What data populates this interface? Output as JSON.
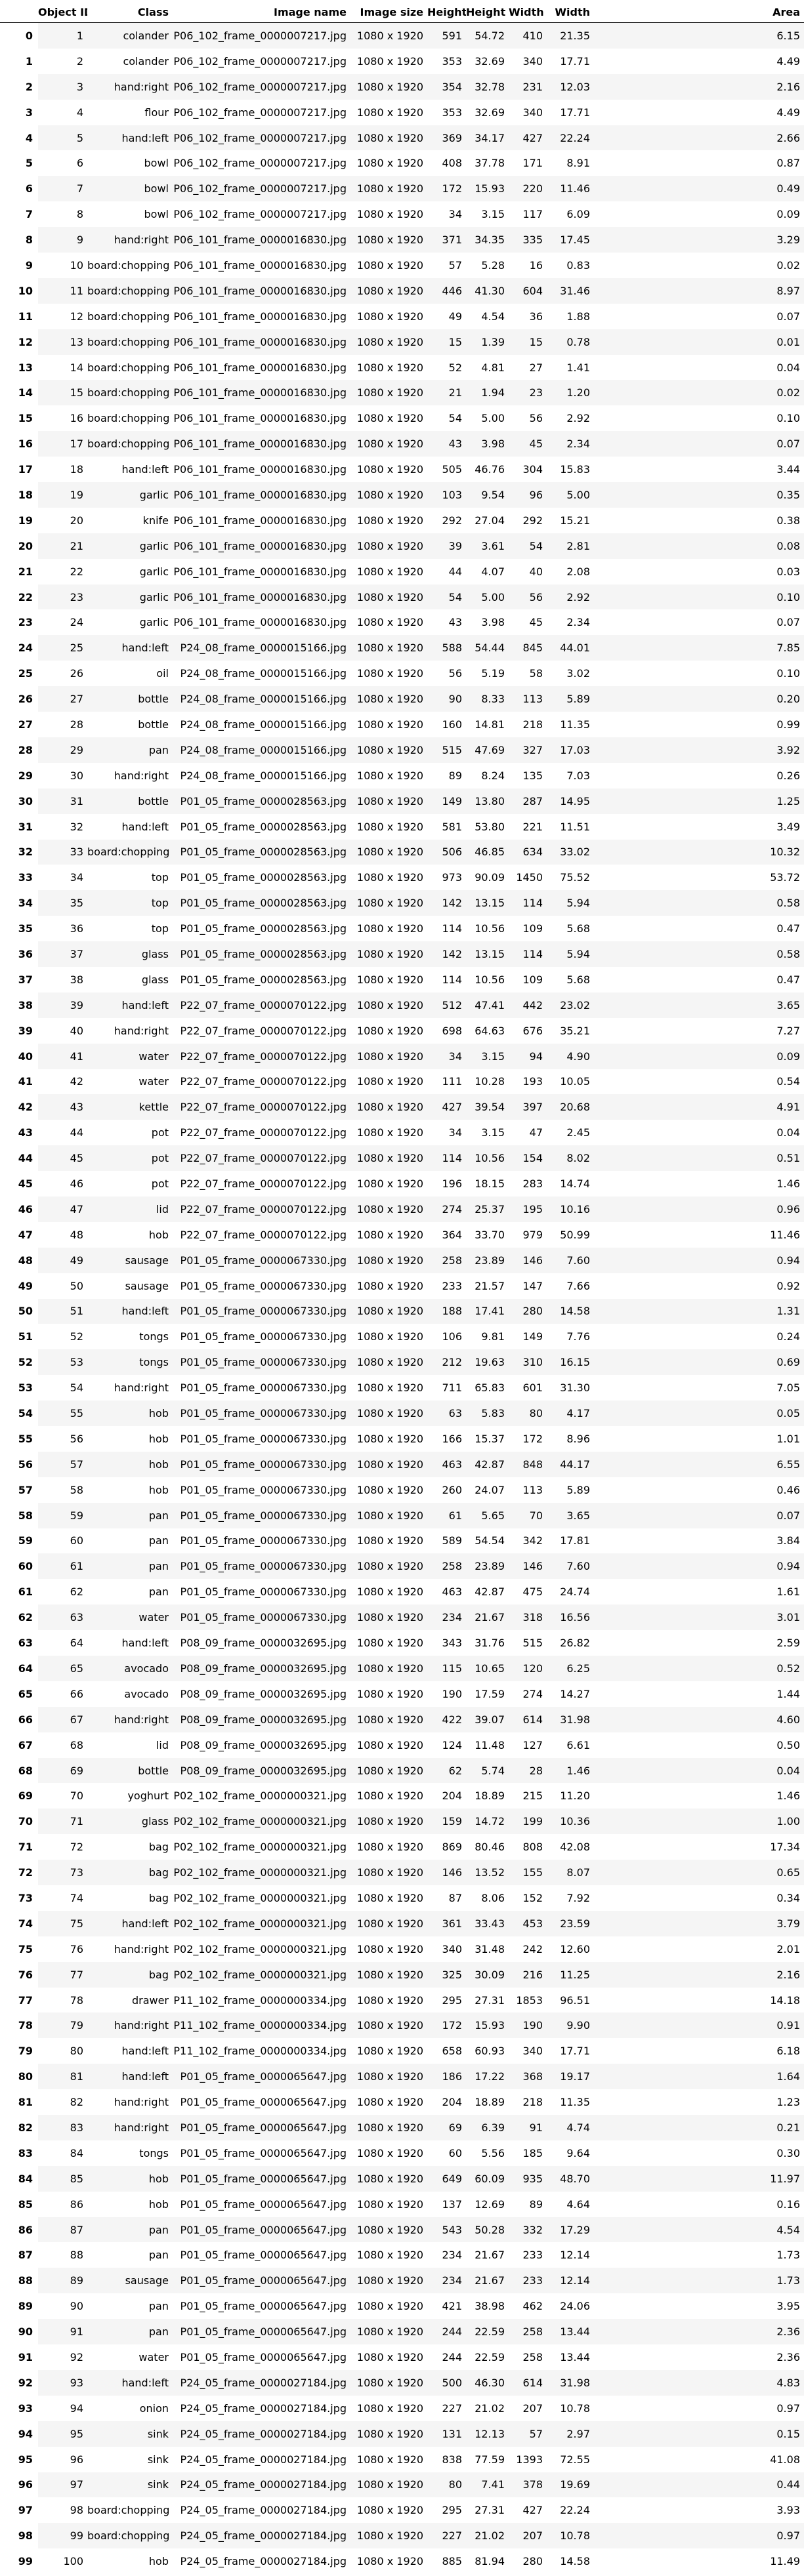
{
  "columns": [
    "",
    "Object ID",
    "Class",
    "Image name",
    "Image size",
    "Height",
    "Height",
    "Width",
    "Width",
    "Area"
  ],
  "rows": [
    [
      "0",
      "1",
      "colander",
      "P06_102_frame_0000007217.jpg",
      "1080 x 1920",
      "591",
      "54.72",
      "410",
      "21.35",
      "6.15"
    ],
    [
      "1",
      "2",
      "colander",
      "P06_102_frame_0000007217.jpg",
      "1080 x 1920",
      "353",
      "32.69",
      "340",
      "17.71",
      "4.49"
    ],
    [
      "2",
      "3",
      "hand:right",
      "P06_102_frame_0000007217.jpg",
      "1080 x 1920",
      "354",
      "32.78",
      "231",
      "12.03",
      "2.16"
    ],
    [
      "3",
      "4",
      "flour",
      "P06_102_frame_0000007217.jpg",
      "1080 x 1920",
      "353",
      "32.69",
      "340",
      "17.71",
      "4.49"
    ],
    [
      "4",
      "5",
      "hand:left",
      "P06_102_frame_0000007217.jpg",
      "1080 x 1920",
      "369",
      "34.17",
      "427",
      "22.24",
      "2.66"
    ],
    [
      "5",
      "6",
      "bowl",
      "P06_102_frame_0000007217.jpg",
      "1080 x 1920",
      "408",
      "37.78",
      "171",
      "8.91",
      "0.87"
    ],
    [
      "6",
      "7",
      "bowl",
      "P06_102_frame_0000007217.jpg",
      "1080 x 1920",
      "172",
      "15.93",
      "220",
      "11.46",
      "0.49"
    ],
    [
      "7",
      "8",
      "bowl",
      "P06_102_frame_0000007217.jpg",
      "1080 x 1920",
      "34",
      "3.15",
      "117",
      "6.09",
      "0.09"
    ],
    [
      "8",
      "9",
      "hand:right",
      "P06_101_frame_0000016830.jpg",
      "1080 x 1920",
      "371",
      "34.35",
      "335",
      "17.45",
      "3.29"
    ],
    [
      "9",
      "10",
      "board:chopping",
      "P06_101_frame_0000016830.jpg",
      "1080 x 1920",
      "57",
      "5.28",
      "16",
      "0.83",
      "0.02"
    ],
    [
      "10",
      "11",
      "board:chopping",
      "P06_101_frame_0000016830.jpg",
      "1080 x 1920",
      "446",
      "41.30",
      "604",
      "31.46",
      "8.97"
    ],
    [
      "11",
      "12",
      "board:chopping",
      "P06_101_frame_0000016830.jpg",
      "1080 x 1920",
      "49",
      "4.54",
      "36",
      "1.88",
      "0.07"
    ],
    [
      "12",
      "13",
      "board:chopping",
      "P06_101_frame_0000016830.jpg",
      "1080 x 1920",
      "15",
      "1.39",
      "15",
      "0.78",
      "0.01"
    ],
    [
      "13",
      "14",
      "board:chopping",
      "P06_101_frame_0000016830.jpg",
      "1080 x 1920",
      "52",
      "4.81",
      "27",
      "1.41",
      "0.04"
    ],
    [
      "14",
      "15",
      "board:chopping",
      "P06_101_frame_0000016830.jpg",
      "1080 x 1920",
      "21",
      "1.94",
      "23",
      "1.20",
      "0.02"
    ],
    [
      "15",
      "16",
      "board:chopping",
      "P06_101_frame_0000016830.jpg",
      "1080 x 1920",
      "54",
      "5.00",
      "56",
      "2.92",
      "0.10"
    ],
    [
      "16",
      "17",
      "board:chopping",
      "P06_101_frame_0000016830.jpg",
      "1080 x 1920",
      "43",
      "3.98",
      "45",
      "2.34",
      "0.07"
    ],
    [
      "17",
      "18",
      "hand:left",
      "P06_101_frame_0000016830.jpg",
      "1080 x 1920",
      "505",
      "46.76",
      "304",
      "15.83",
      "3.44"
    ],
    [
      "18",
      "19",
      "garlic",
      "P06_101_frame_0000016830.jpg",
      "1080 x 1920",
      "103",
      "9.54",
      "96",
      "5.00",
      "0.35"
    ],
    [
      "19",
      "20",
      "knife",
      "P06_101_frame_0000016830.jpg",
      "1080 x 1920",
      "292",
      "27.04",
      "292",
      "15.21",
      "0.38"
    ],
    [
      "20",
      "21",
      "garlic",
      "P06_101_frame_0000016830.jpg",
      "1080 x 1920",
      "39",
      "3.61",
      "54",
      "2.81",
      "0.08"
    ],
    [
      "21",
      "22",
      "garlic",
      "P06_101_frame_0000016830.jpg",
      "1080 x 1920",
      "44",
      "4.07",
      "40",
      "2.08",
      "0.03"
    ],
    [
      "22",
      "23",
      "garlic",
      "P06_101_frame_0000016830.jpg",
      "1080 x 1920",
      "54",
      "5.00",
      "56",
      "2.92",
      "0.10"
    ],
    [
      "23",
      "24",
      "garlic",
      "P06_101_frame_0000016830.jpg",
      "1080 x 1920",
      "43",
      "3.98",
      "45",
      "2.34",
      "0.07"
    ],
    [
      "24",
      "25",
      "hand:left",
      "P24_08_frame_0000015166.jpg",
      "1080 x 1920",
      "588",
      "54.44",
      "845",
      "44.01",
      "7.85"
    ],
    [
      "25",
      "26",
      "oil",
      "P24_08_frame_0000015166.jpg",
      "1080 x 1920",
      "56",
      "5.19",
      "58",
      "3.02",
      "0.10"
    ],
    [
      "26",
      "27",
      "bottle",
      "P24_08_frame_0000015166.jpg",
      "1080 x 1920",
      "90",
      "8.33",
      "113",
      "5.89",
      "0.20"
    ],
    [
      "27",
      "28",
      "bottle",
      "P24_08_frame_0000015166.jpg",
      "1080 x 1920",
      "160",
      "14.81",
      "218",
      "11.35",
      "0.99"
    ],
    [
      "28",
      "29",
      "pan",
      "P24_08_frame_0000015166.jpg",
      "1080 x 1920",
      "515",
      "47.69",
      "327",
      "17.03",
      "3.92"
    ],
    [
      "29",
      "30",
      "hand:right",
      "P24_08_frame_0000015166.jpg",
      "1080 x 1920",
      "89",
      "8.24",
      "135",
      "7.03",
      "0.26"
    ],
    [
      "30",
      "31",
      "bottle",
      "P01_05_frame_0000028563.jpg",
      "1080 x 1920",
      "149",
      "13.80",
      "287",
      "14.95",
      "1.25"
    ],
    [
      "31",
      "32",
      "hand:left",
      "P01_05_frame_0000028563.jpg",
      "1080 x 1920",
      "581",
      "53.80",
      "221",
      "11.51",
      "3.49"
    ],
    [
      "32",
      "33",
      "board:chopping",
      "P01_05_frame_0000028563.jpg",
      "1080 x 1920",
      "506",
      "46.85",
      "634",
      "33.02",
      "10.32"
    ],
    [
      "33",
      "34",
      "top",
      "P01_05_frame_0000028563.jpg",
      "1080 x 1920",
      "973",
      "90.09",
      "1450",
      "75.52",
      "53.72"
    ],
    [
      "34",
      "35",
      "top",
      "P01_05_frame_0000028563.jpg",
      "1080 x 1920",
      "142",
      "13.15",
      "114",
      "5.94",
      "0.58"
    ],
    [
      "35",
      "36",
      "top",
      "P01_05_frame_0000028563.jpg",
      "1080 x 1920",
      "114",
      "10.56",
      "109",
      "5.68",
      "0.47"
    ],
    [
      "36",
      "37",
      "glass",
      "P01_05_frame_0000028563.jpg",
      "1080 x 1920",
      "142",
      "13.15",
      "114",
      "5.94",
      "0.58"
    ],
    [
      "37",
      "38",
      "glass",
      "P01_05_frame_0000028563.jpg",
      "1080 x 1920",
      "114",
      "10.56",
      "109",
      "5.68",
      "0.47"
    ],
    [
      "38",
      "39",
      "hand:left",
      "P22_07_frame_0000070122.jpg",
      "1080 x 1920",
      "512",
      "47.41",
      "442",
      "23.02",
      "3.65"
    ],
    [
      "39",
      "40",
      "hand:right",
      "P22_07_frame_0000070122.jpg",
      "1080 x 1920",
      "698",
      "64.63",
      "676",
      "35.21",
      "7.27"
    ],
    [
      "40",
      "41",
      "water",
      "P22_07_frame_0000070122.jpg",
      "1080 x 1920",
      "34",
      "3.15",
      "94",
      "4.90",
      "0.09"
    ],
    [
      "41",
      "42",
      "water",
      "P22_07_frame_0000070122.jpg",
      "1080 x 1920",
      "111",
      "10.28",
      "193",
      "10.05",
      "0.54"
    ],
    [
      "42",
      "43",
      "kettle",
      "P22_07_frame_0000070122.jpg",
      "1080 x 1920",
      "427",
      "39.54",
      "397",
      "20.68",
      "4.91"
    ],
    [
      "43",
      "44",
      "pot",
      "P22_07_frame_0000070122.jpg",
      "1080 x 1920",
      "34",
      "3.15",
      "47",
      "2.45",
      "0.04"
    ],
    [
      "44",
      "45",
      "pot",
      "P22_07_frame_0000070122.jpg",
      "1080 x 1920",
      "114",
      "10.56",
      "154",
      "8.02",
      "0.51"
    ],
    [
      "45",
      "46",
      "pot",
      "P22_07_frame_0000070122.jpg",
      "1080 x 1920",
      "196",
      "18.15",
      "283",
      "14.74",
      "1.46"
    ],
    [
      "46",
      "47",
      "lid",
      "P22_07_frame_0000070122.jpg",
      "1080 x 1920",
      "274",
      "25.37",
      "195",
      "10.16",
      "0.96"
    ],
    [
      "47",
      "48",
      "hob",
      "P22_07_frame_0000070122.jpg",
      "1080 x 1920",
      "364",
      "33.70",
      "979",
      "50.99",
      "11.46"
    ],
    [
      "48",
      "49",
      "sausage",
      "P01_05_frame_0000067330.jpg",
      "1080 x 1920",
      "258",
      "23.89",
      "146",
      "7.60",
      "0.94"
    ],
    [
      "49",
      "50",
      "sausage",
      "P01_05_frame_0000067330.jpg",
      "1080 x 1920",
      "233",
      "21.57",
      "147",
      "7.66",
      "0.92"
    ],
    [
      "50",
      "51",
      "hand:left",
      "P01_05_frame_0000067330.jpg",
      "1080 x 1920",
      "188",
      "17.41",
      "280",
      "14.58",
      "1.31"
    ],
    [
      "51",
      "52",
      "tongs",
      "P01_05_frame_0000067330.jpg",
      "1080 x 1920",
      "106",
      "9.81",
      "149",
      "7.76",
      "0.24"
    ],
    [
      "52",
      "53",
      "tongs",
      "P01_05_frame_0000067330.jpg",
      "1080 x 1920",
      "212",
      "19.63",
      "310",
      "16.15",
      "0.69"
    ],
    [
      "53",
      "54",
      "hand:right",
      "P01_05_frame_0000067330.jpg",
      "1080 x 1920",
      "711",
      "65.83",
      "601",
      "31.30",
      "7.05"
    ],
    [
      "54",
      "55",
      "hob",
      "P01_05_frame_0000067330.jpg",
      "1080 x 1920",
      "63",
      "5.83",
      "80",
      "4.17",
      "0.05"
    ],
    [
      "55",
      "56",
      "hob",
      "P01_05_frame_0000067330.jpg",
      "1080 x 1920",
      "166",
      "15.37",
      "172",
      "8.96",
      "1.01"
    ],
    [
      "56",
      "57",
      "hob",
      "P01_05_frame_0000067330.jpg",
      "1080 x 1920",
      "463",
      "42.87",
      "848",
      "44.17",
      "6.55"
    ],
    [
      "57",
      "58",
      "hob",
      "P01_05_frame_0000067330.jpg",
      "1080 x 1920",
      "260",
      "24.07",
      "113",
      "5.89",
      "0.46"
    ],
    [
      "58",
      "59",
      "pan",
      "P01_05_frame_0000067330.jpg",
      "1080 x 1920",
      "61",
      "5.65",
      "70",
      "3.65",
      "0.07"
    ],
    [
      "59",
      "60",
      "pan",
      "P01_05_frame_0000067330.jpg",
      "1080 x 1920",
      "589",
      "54.54",
      "342",
      "17.81",
      "3.84"
    ],
    [
      "60",
      "61",
      "pan",
      "P01_05_frame_0000067330.jpg",
      "1080 x 1920",
      "258",
      "23.89",
      "146",
      "7.60",
      "0.94"
    ],
    [
      "61",
      "62",
      "pan",
      "P01_05_frame_0000067330.jpg",
      "1080 x 1920",
      "463",
      "42.87",
      "475",
      "24.74",
      "1.61"
    ],
    [
      "62",
      "63",
      "water",
      "P01_05_frame_0000067330.jpg",
      "1080 x 1920",
      "234",
      "21.67",
      "318",
      "16.56",
      "3.01"
    ],
    [
      "63",
      "64",
      "hand:left",
      "P08_09_frame_0000032695.jpg",
      "1080 x 1920",
      "343",
      "31.76",
      "515",
      "26.82",
      "2.59"
    ],
    [
      "64",
      "65",
      "avocado",
      "P08_09_frame_0000032695.jpg",
      "1080 x 1920",
      "115",
      "10.65",
      "120",
      "6.25",
      "0.52"
    ],
    [
      "65",
      "66",
      "avocado",
      "P08_09_frame_0000032695.jpg",
      "1080 x 1920",
      "190",
      "17.59",
      "274",
      "14.27",
      "1.44"
    ],
    [
      "66",
      "67",
      "hand:right",
      "P08_09_frame_0000032695.jpg",
      "1080 x 1920",
      "422",
      "39.07",
      "614",
      "31.98",
      "4.60"
    ],
    [
      "67",
      "68",
      "lid",
      "P08_09_frame_0000032695.jpg",
      "1080 x 1920",
      "124",
      "11.48",
      "127",
      "6.61",
      "0.50"
    ],
    [
      "68",
      "69",
      "bottle",
      "P08_09_frame_0000032695.jpg",
      "1080 x 1920",
      "62",
      "5.74",
      "28",
      "1.46",
      "0.04"
    ],
    [
      "69",
      "70",
      "yoghurt",
      "P02_102_frame_0000000321.jpg",
      "1080 x 1920",
      "204",
      "18.89",
      "215",
      "11.20",
      "1.46"
    ],
    [
      "70",
      "71",
      "glass",
      "P02_102_frame_0000000321.jpg",
      "1080 x 1920",
      "159",
      "14.72",
      "199",
      "10.36",
      "1.00"
    ],
    [
      "71",
      "72",
      "bag",
      "P02_102_frame_0000000321.jpg",
      "1080 x 1920",
      "869",
      "80.46",
      "808",
      "42.08",
      "17.34"
    ],
    [
      "72",
      "73",
      "bag",
      "P02_102_frame_0000000321.jpg",
      "1080 x 1920",
      "146",
      "13.52",
      "155",
      "8.07",
      "0.65"
    ],
    [
      "73",
      "74",
      "bag",
      "P02_102_frame_0000000321.jpg",
      "1080 x 1920",
      "87",
      "8.06",
      "152",
      "7.92",
      "0.34"
    ],
    [
      "74",
      "75",
      "hand:left",
      "P02_102_frame_0000000321.jpg",
      "1080 x 1920",
      "361",
      "33.43",
      "453",
      "23.59",
      "3.79"
    ],
    [
      "75",
      "76",
      "hand:right",
      "P02_102_frame_0000000321.jpg",
      "1080 x 1920",
      "340",
      "31.48",
      "242",
      "12.60",
      "2.01"
    ],
    [
      "76",
      "77",
      "bag",
      "P02_102_frame_0000000321.jpg",
      "1080 x 1920",
      "325",
      "30.09",
      "216",
      "11.25",
      "2.16"
    ],
    [
      "77",
      "78",
      "drawer",
      "P11_102_frame_0000000334.jpg",
      "1080 x 1920",
      "295",
      "27.31",
      "1853",
      "96.51",
      "14.18"
    ],
    [
      "78",
      "79",
      "hand:right",
      "P11_102_frame_0000000334.jpg",
      "1080 x 1920",
      "172",
      "15.93",
      "190",
      "9.90",
      "0.91"
    ],
    [
      "79",
      "80",
      "hand:left",
      "P11_102_frame_0000000334.jpg",
      "1080 x 1920",
      "658",
      "60.93",
      "340",
      "17.71",
      "6.18"
    ],
    [
      "80",
      "81",
      "hand:left",
      "P01_05_frame_0000065647.jpg",
      "1080 x 1920",
      "186",
      "17.22",
      "368",
      "19.17",
      "1.64"
    ],
    [
      "81",
      "82",
      "hand:right",
      "P01_05_frame_0000065647.jpg",
      "1080 x 1920",
      "204",
      "18.89",
      "218",
      "11.35",
      "1.23"
    ],
    [
      "82",
      "83",
      "hand:right",
      "P01_05_frame_0000065647.jpg",
      "1080 x 1920",
      "69",
      "6.39",
      "91",
      "4.74",
      "0.21"
    ],
    [
      "83",
      "84",
      "tongs",
      "P01_05_frame_0000065647.jpg",
      "1080 x 1920",
      "60",
      "5.56",
      "185",
      "9.64",
      "0.30"
    ],
    [
      "84",
      "85",
      "hob",
      "P01_05_frame_0000065647.jpg",
      "1080 x 1920",
      "649",
      "60.09",
      "935",
      "48.70",
      "11.97"
    ],
    [
      "85",
      "86",
      "hob",
      "P01_05_frame_0000065647.jpg",
      "1080 x 1920",
      "137",
      "12.69",
      "89",
      "4.64",
      "0.16"
    ],
    [
      "86",
      "87",
      "pan",
      "P01_05_frame_0000065647.jpg",
      "1080 x 1920",
      "543",
      "50.28",
      "332",
      "17.29",
      "4.54"
    ],
    [
      "87",
      "88",
      "pan",
      "P01_05_frame_0000065647.jpg",
      "1080 x 1920",
      "234",
      "21.67",
      "233",
      "12.14",
      "1.73"
    ],
    [
      "88",
      "89",
      "sausage",
      "P01_05_frame_0000065647.jpg",
      "1080 x 1920",
      "234",
      "21.67",
      "233",
      "12.14",
      "1.73"
    ],
    [
      "89",
      "90",
      "pan",
      "P01_05_frame_0000065647.jpg",
      "1080 x 1920",
      "421",
      "38.98",
      "462",
      "24.06",
      "3.95"
    ],
    [
      "90",
      "91",
      "pan",
      "P01_05_frame_0000065647.jpg",
      "1080 x 1920",
      "244",
      "22.59",
      "258",
      "13.44",
      "2.36"
    ],
    [
      "91",
      "92",
      "water",
      "P01_05_frame_0000065647.jpg",
      "1080 x 1920",
      "244",
      "22.59",
      "258",
      "13.44",
      "2.36"
    ],
    [
      "92",
      "93",
      "hand:left",
      "P24_05_frame_0000027184.jpg",
      "1080 x 1920",
      "500",
      "46.30",
      "614",
      "31.98",
      "4.83"
    ],
    [
      "93",
      "94",
      "onion",
      "P24_05_frame_0000027184.jpg",
      "1080 x 1920",
      "227",
      "21.02",
      "207",
      "10.78",
      "0.97"
    ],
    [
      "94",
      "95",
      "sink",
      "P24_05_frame_0000027184.jpg",
      "1080 x 1920",
      "131",
      "12.13",
      "57",
      "2.97",
      "0.15"
    ],
    [
      "95",
      "96",
      "sink",
      "P24_05_frame_0000027184.jpg",
      "1080 x 1920",
      "838",
      "77.59",
      "1393",
      "72.55",
      "41.08"
    ],
    [
      "96",
      "97",
      "sink",
      "P24_05_frame_0000027184.jpg",
      "1080 x 1920",
      "80",
      "7.41",
      "378",
      "19.69",
      "0.44"
    ],
    [
      "97",
      "98",
      "board:chopping",
      "P24_05_frame_0000027184.jpg",
      "1080 x 1920",
      "295",
      "27.31",
      "427",
      "22.24",
      "3.93"
    ],
    [
      "98",
      "99",
      "board:chopping",
      "P24_05_frame_0000027184.jpg",
      "1080 x 1920",
      "227",
      "21.02",
      "207",
      "10.78",
      "0.97"
    ],
    [
      "99",
      "100",
      "hob",
      "P24_05_frame_0000027184.jpg",
      "1080 x 1920",
      "885",
      "81.94",
      "280",
      "14.58",
      "11.49"
    ]
  ]
}
